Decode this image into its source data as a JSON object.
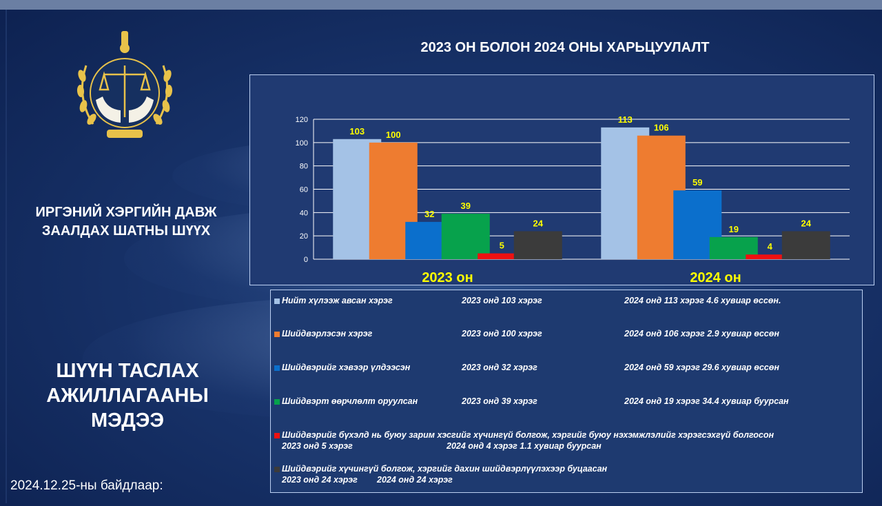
{
  "header": {
    "title": "2023 ОН БОЛОН 2024 ОНЫ ХАРЬЦУУЛАЛТ"
  },
  "sidebar": {
    "court_name": "ИРГЭНИЙ ХЭРГИЙН ДАВЖ\nЗААЛДАХ ШАТНЫ ШҮҮХ",
    "news_title": "ШҮҮН ТАСЛАХ\nАЖИЛЛАГААНЫ\nМЭДЭЭ",
    "date_note": "2024.12.25-ны байдлаар:"
  },
  "colors": {
    "background": "#18336a",
    "title_text": "#ffffff",
    "value_label": "#ffff00",
    "category_label": "#ffff00",
    "emblem_gold": "#e8c24a"
  },
  "chart_data": {
    "type": "bar",
    "categories": [
      "2023 он",
      "2024 он"
    ],
    "ylim": [
      0,
      120
    ],
    "yticks": [
      0,
      20,
      40,
      60,
      80,
      100,
      120
    ],
    "grid": true,
    "series": [
      {
        "color": "#a4c2e6",
        "values": [
          103,
          113
        ]
      },
      {
        "color": "#ee7c30",
        "values": [
          100,
          106
        ]
      },
      {
        "color": "#0b6fcc",
        "values": [
          32,
          59
        ]
      },
      {
        "color": "#07a24c",
        "values": [
          39,
          19
        ]
      },
      {
        "color": "#ee1111",
        "values": [
          5,
          4
        ]
      },
      {
        "color": "#3b3b3b",
        "values": [
          24,
          24
        ]
      }
    ]
  },
  "legend": {
    "rows": [
      {
        "color": "#a4c2e6",
        "parts": [
          "Нийт хүлээж авсан хэрэг",
          "2023 онд 103 хэрэг",
          "2024 онд 113 хэрэг 4.6 хувиар өссөн."
        ]
      },
      {
        "color": "#ee7c30",
        "parts": [
          "Шийдвэрлэсэн хэрэг",
          "2023 онд 100 хэрэг",
          "2024 онд 106 хэрэг 2.9 хувиар өссөн"
        ]
      },
      {
        "color": "#0b6fcc",
        "parts": [
          "Шийдвэрийг хэвээр үлдээсэн",
          "2023 онд 32 хэрэг",
          "2024 онд 59 хэрэг 29.6 хувиар өссөн"
        ]
      },
      {
        "color": "#07a24c",
        "parts": [
          "Шийдвэрт өөрчлөлт оруулсан",
          "2023 онд 39 хэрэг",
          "2024 онд 19 хэрэг 34.4 хувиар буурсан"
        ]
      },
      {
        "color": "#ee1111",
        "parts": [
          "Шийдвэрийг бүхэлд нь буюу зарим хэсгийг хүчингүй болгож, хэргийг буюу нэхэмжлэлийг хэрэгсэхгүй болгосон",
          "2023 онд 5 хэрэг",
          "2024 онд 4 хэрэг 1.1 хувиар буурсан"
        ]
      },
      {
        "color": "#3b3b3b",
        "parts": [
          "Шийдвэрийг хүчингүй болгож, хэргийг дахин шийдвэрлүүлэхээр буцаасан",
          "2023 онд 24 хэрэг",
          "2024 онд 24 хэрэг"
        ]
      }
    ]
  }
}
